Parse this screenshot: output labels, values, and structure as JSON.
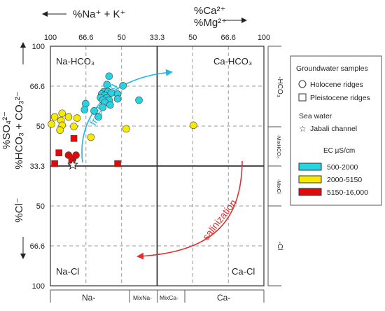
{
  "chart_data": {
    "type": "scatter",
    "top_axis": {
      "left_label": "%Na⁺ + K⁺",
      "right_label_line1": "%Ca²⁺",
      "right_label_line2": "%Mg²⁺",
      "ticks": [
        "100",
        "66.6",
        "50",
        "33.3",
        "50",
        "66.6",
        "100"
      ]
    },
    "left_axis": {
      "upper_label_line1": "%SO₄²⁻",
      "upper_label_line2": "%HCO₃ + CO₃²⁻",
      "lower_label": "%Cl⁻",
      "upper_ticks": [
        "100",
        "66.6",
        "50",
        "33.3"
      ],
      "lower_ticks": [
        "50",
        "66.6",
        "100"
      ]
    },
    "bottom_axis": {
      "labels": [
        "Na-",
        "MixNa-",
        "MixCa-",
        "Ca-"
      ]
    },
    "right_axis": {
      "labels": [
        "-HCO₃",
        "-MixHCO₃",
        "-MixCl",
        "-Cl"
      ]
    },
    "quadrants": {
      "top_left": "Na-HCO₃",
      "top_right": "Ca-HCO₃",
      "bottom_left": "Na-Cl",
      "bottom_right": "Ca-Cl"
    },
    "annotations": {
      "freshening": "freshening",
      "salinization": "salinization"
    },
    "legend": {
      "title": "Groundwater samples",
      "holocene": "Holocene ridges",
      "pleistocene": "Pleistocene ridges",
      "sea_title": "Sea water",
      "sea_item": "Jabali channel",
      "ec_title": "EC µS/cm",
      "classes": [
        {
          "label": "500-2000",
          "color": "#27d3e3"
        },
        {
          "label": "2000-5150",
          "color": "#f5ea00"
        },
        {
          "label": "5150-16,000",
          "color": "#e10a0a"
        }
      ]
    },
    "colors": {
      "freshening_arrow": "#1fb5e6",
      "salinization_arrow": "#e03030",
      "top_right_label": "#1fb5e6",
      "bottom_left_label": "#e03030"
    },
    "points": [
      {
        "x": -45,
        "y": 75,
        "shape": "circle",
        "ec": 0
      },
      {
        "x": -47,
        "y": 68,
        "shape": "circle",
        "ec": 0
      },
      {
        "x": -50,
        "y": 62,
        "shape": "circle",
        "ec": 0
      },
      {
        "x": -46,
        "y": 62,
        "shape": "circle",
        "ec": 0
      },
      {
        "x": -52,
        "y": 60,
        "shape": "circle",
        "ec": 0
      },
      {
        "x": -49,
        "y": 59,
        "shape": "circle",
        "ec": 0
      },
      {
        "x": -43,
        "y": 61,
        "shape": "circle",
        "ec": 0
      },
      {
        "x": -37,
        "y": 60,
        "shape": "circle",
        "ec": 0
      },
      {
        "x": -53,
        "y": 57,
        "shape": "circle",
        "ec": 0
      },
      {
        "x": -47,
        "y": 57,
        "shape": "circle",
        "ec": 0
      },
      {
        "x": -51,
        "y": 55,
        "shape": "circle",
        "ec": 0
      },
      {
        "x": -45,
        "y": 55,
        "shape": "circle",
        "ec": 0
      },
      {
        "x": -37,
        "y": 56,
        "shape": "circle",
        "ec": 0
      },
      {
        "x": -49,
        "y": 53,
        "shape": "circle",
        "ec": 0
      },
      {
        "x": -44,
        "y": 51,
        "shape": "circle",
        "ec": 0
      },
      {
        "x": -32,
        "y": 67,
        "shape": "circle",
        "ec": 0
      },
      {
        "x": -17,
        "y": 55,
        "shape": "circle",
        "ec": 0
      },
      {
        "x": -67,
        "y": 52,
        "shape": "circle",
        "ec": 0
      },
      {
        "x": -51,
        "y": 49,
        "shape": "circle",
        "ec": 0
      },
      {
        "x": -68,
        "y": 47,
        "shape": "circle",
        "ec": 0
      },
      {
        "x": -59,
        "y": 46,
        "shape": "circle",
        "ec": 0
      },
      {
        "x": -55,
        "y": 41,
        "shape": "circle",
        "ec": 0
      },
      {
        "x": -89,
        "y": 44,
        "shape": "circle",
        "ec": 1
      },
      {
        "x": -96,
        "y": 41,
        "shape": "circle",
        "ec": 1
      },
      {
        "x": -83,
        "y": 41,
        "shape": "circle",
        "ec": 1
      },
      {
        "x": -90,
        "y": 38,
        "shape": "circle",
        "ec": 1
      },
      {
        "x": -75,
        "y": 40,
        "shape": "circle",
        "ec": 1
      },
      {
        "x": -99,
        "y": 35,
        "shape": "circle",
        "ec": 1
      },
      {
        "x": -89,
        "y": 34,
        "shape": "circle",
        "ec": 1
      },
      {
        "x": -78,
        "y": 33,
        "shape": "circle",
        "ec": 1
      },
      {
        "x": -91,
        "y": 30,
        "shape": "circle",
        "ec": 1
      },
      {
        "x": -62,
        "y": 24,
        "shape": "circle",
        "ec": 1
      },
      {
        "x": -29,
        "y": 31,
        "shape": "circle",
        "ec": 1
      },
      {
        "x": 34,
        "y": 34,
        "shape": "circle",
        "ec": 1
      },
      {
        "x": -78,
        "y": 23,
        "shape": "square",
        "ec": 2
      },
      {
        "x": -92,
        "y": 11,
        "shape": "square",
        "ec": 2
      },
      {
        "x": -83,
        "y": 9,
        "shape": "circle",
        "ec": 2
      },
      {
        "x": -79,
        "y": 6,
        "shape": "circle",
        "ec": 2
      },
      {
        "x": -76,
        "y": 9,
        "shape": "circle",
        "ec": 2
      },
      {
        "x": -96,
        "y": 2,
        "shape": "square",
        "ec": 2
      },
      {
        "x": -80,
        "y": 3,
        "shape": "square",
        "ec": 2
      },
      {
        "x": -37,
        "y": 2,
        "shape": "square",
        "ec": 2
      }
    ],
    "sea_water_point": {
      "x": -79,
      "y": 1
    }
  }
}
